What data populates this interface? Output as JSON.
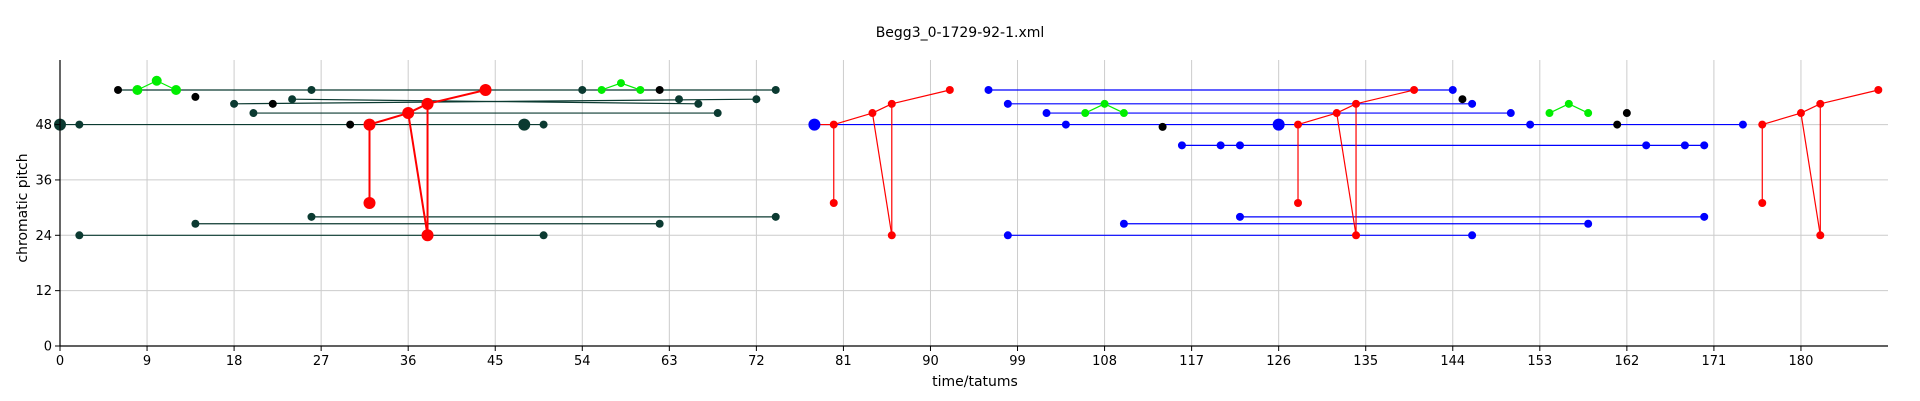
{
  "chart_data": {
    "type": "scatter",
    "title": "Begg3_0-1729-92-1.xml",
    "xlabel": "time/tatums",
    "ylabel": "chromatic pitch",
    "xlim": [
      0,
      189
    ],
    "ylim": [
      0,
      62
    ],
    "xticks": [
      0,
      9,
      18,
      27,
      36,
      45,
      54,
      63,
      72,
      81,
      90,
      99,
      108,
      117,
      126,
      135,
      144,
      153,
      162,
      171,
      180
    ],
    "yticks": [
      0,
      12,
      24,
      36,
      48
    ],
    "grid": true,
    "colors": {
      "darkgreen": "#0b3a31",
      "red": "#ff0000",
      "blue": "#0000ff",
      "green": "#00ee00",
      "black": "#000000"
    },
    "series": [
      {
        "color": "darkgreen",
        "edges": [
          [
            [
              6,
              55.5
            ],
            [
              74,
              55.5
            ]
          ],
          [
            [
              18,
              52.5
            ],
            [
              72,
              53.5
            ]
          ],
          [
            [
              24,
              53.5
            ],
            [
              66,
              52.5
            ]
          ],
          [
            [
              20,
              50.5
            ],
            [
              68,
              50.5
            ]
          ],
          [
            [
              0,
              48
            ],
            [
              50,
              48
            ]
          ],
          [
            [
              26,
              28
            ],
            [
              74,
              28
            ]
          ],
          [
            [
              14,
              26.5
            ],
            [
              62,
              26.5
            ]
          ],
          [
            [
              2,
              24
            ],
            [
              50,
              24
            ]
          ]
        ]
      },
      {
        "color": "red",
        "edges": [
          [
            [
              32,
              48
            ],
            [
              36,
              50.5
            ]
          ],
          [
            [
              36,
              50.5
            ],
            [
              38,
              52.5
            ]
          ],
          [
            [
              38,
              52.5
            ],
            [
              44,
              55.5
            ]
          ],
          [
            [
              32,
              48
            ],
            [
              32,
              31
            ]
          ],
          [
            [
              38,
              52.5
            ],
            [
              38,
              24
            ]
          ],
          [
            [
              36,
              50.5
            ],
            [
              38,
              24
            ]
          ]
        ]
      },
      {
        "color": "green",
        "edges": [
          [
            [
              8,
              55.5
            ],
            [
              10,
              57.5
            ]
          ],
          [
            [
              10,
              57.5
            ],
            [
              12,
              55.5
            ]
          ],
          [
            [
              56,
              55.5
            ],
            [
              58,
              57
            ]
          ],
          [
            [
              58,
              57
            ],
            [
              60,
              55.5
            ]
          ]
        ]
      },
      {
        "color": "blue",
        "edges": [
          [
            [
              96,
              55.5
            ],
            [
              144,
              55.5
            ]
          ],
          [
            [
              98,
              52.5
            ],
            [
              146,
              52.5
            ]
          ],
          [
            [
              102,
              50.5
            ],
            [
              150,
              50.5
            ]
          ],
          [
            [
              78,
              48
            ],
            [
              174,
              48
            ]
          ],
          [
            [
              116,
              43.5
            ],
            [
              170,
              43.5
            ]
          ],
          [
            [
              122,
              28
            ],
            [
              170,
              28
            ]
          ],
          [
            [
              110,
              26.5
            ],
            [
              158,
              26.5
            ]
          ],
          [
            [
              98,
              24
            ],
            [
              146,
              24
            ]
          ]
        ]
      },
      {
        "color": "red",
        "edges": [
          [
            [
              78,
              48
            ],
            [
              80,
              48
            ]
          ],
          [
            [
              80,
              48
            ],
            [
              84,
              50.5
            ]
          ],
          [
            [
              84,
              50.5
            ],
            [
              86,
              52.5
            ]
          ],
          [
            [
              86,
              52.5
            ],
            [
              92,
              55.5
            ]
          ],
          [
            [
              80,
              48
            ],
            [
              80,
              31
            ]
          ],
          [
            [
              84,
              50.5
            ],
            [
              86,
              24
            ]
          ],
          [
            [
              86,
              52.5
            ],
            [
              86,
              24
            ]
          ],
          [
            [
              128,
              48
            ],
            [
              132,
              50.5
            ]
          ],
          [
            [
              132,
              50.5
            ],
            [
              134,
              52.5
            ]
          ],
          [
            [
              134,
              52.5
            ],
            [
              140,
              55.5
            ]
          ],
          [
            [
              128,
              48
            ],
            [
              128,
              31
            ]
          ],
          [
            [
              132,
              50.5
            ],
            [
              134,
              24
            ]
          ],
          [
            [
              134,
              52.5
            ],
            [
              134,
              24
            ]
          ],
          [
            [
              176,
              48
            ],
            [
              180,
              50.5
            ]
          ],
          [
            [
              180,
              50.5
            ],
            [
              182,
              52.5
            ]
          ],
          [
            [
              182,
              52.5
            ],
            [
              188,
              55.5
            ]
          ],
          [
            [
              176,
              48
            ],
            [
              176,
              31
            ]
          ],
          [
            [
              180,
              50.5
            ],
            [
              182,
              24
            ]
          ],
          [
            [
              182,
              52.5
            ],
            [
              182,
              24
            ]
          ]
        ]
      },
      {
        "color": "green",
        "edges": [
          [
            [
              106,
              50.5
            ],
            [
              108,
              52.5
            ]
          ],
          [
            [
              108,
              52.5
            ],
            [
              110,
              50.5
            ]
          ],
          [
            [
              154,
              50.5
            ],
            [
              156,
              52.5
            ]
          ],
          [
            [
              156,
              52.5
            ],
            [
              158,
              50.5
            ]
          ]
        ]
      }
    ],
    "points": [
      [
        0,
        48,
        "darkgreen",
        6
      ],
      [
        2,
        48,
        "darkgreen",
        4
      ],
      [
        2,
        24,
        "darkgreen",
        4
      ],
      [
        6,
        55.5,
        "black",
        4
      ],
      [
        8,
        55.5,
        "green",
        5
      ],
      [
        10,
        57.5,
        "green",
        5
      ],
      [
        12,
        55.5,
        "green",
        5
      ],
      [
        14,
        54,
        "black",
        4
      ],
      [
        14,
        26.5,
        "darkgreen",
        4
      ],
      [
        18,
        52.5,
        "darkgreen",
        4
      ],
      [
        20,
        50.5,
        "darkgreen",
        4
      ],
      [
        22,
        52.5,
        "black",
        4
      ],
      [
        24,
        53.5,
        "darkgreen",
        4
      ],
      [
        26,
        55.5,
        "darkgreen",
        4
      ],
      [
        26,
        28,
        "darkgreen",
        4
      ],
      [
        30,
        48,
        "black",
        4
      ],
      [
        32,
        48,
        "red",
        6
      ],
      [
        32,
        31,
        "red",
        6
      ],
      [
        36,
        50.5,
        "red",
        6
      ],
      [
        38,
        52.5,
        "red",
        6
      ],
      [
        38,
        24,
        "red",
        6
      ],
      [
        44,
        55.5,
        "red",
        6
      ],
      [
        48,
        48,
        "darkgreen",
        6
      ],
      [
        50,
        48,
        "darkgreen",
        4
      ],
      [
        50,
        24,
        "darkgreen",
        4
      ],
      [
        54,
        55.5,
        "darkgreen",
        4
      ],
      [
        56,
        55.5,
        "green",
        4
      ],
      [
        58,
        57,
        "green",
        4
      ],
      [
        60,
        55.5,
        "green",
        4
      ],
      [
        62,
        55.5,
        "black",
        4
      ],
      [
        62,
        26.5,
        "darkgreen",
        4
      ],
      [
        64,
        53.5,
        "darkgreen",
        4
      ],
      [
        66,
        52.5,
        "darkgreen",
        4
      ],
      [
        68,
        50.5,
        "darkgreen",
        4
      ],
      [
        72,
        53.5,
        "darkgreen",
        4
      ],
      [
        74,
        55.5,
        "darkgreen",
        4
      ],
      [
        74,
        28,
        "darkgreen",
        4
      ],
      [
        78,
        48,
        "blue",
        6
      ],
      [
        80,
        48,
        "red",
        4
      ],
      [
        80,
        31,
        "red",
        4
      ],
      [
        84,
        50.5,
        "red",
        4
      ],
      [
        86,
        52.5,
        "red",
        4
      ],
      [
        86,
        24,
        "red",
        4
      ],
      [
        92,
        55.5,
        "red",
        4
      ],
      [
        96,
        55.5,
        "blue",
        4
      ],
      [
        98,
        52.5,
        "blue",
        4
      ],
      [
        98,
        24,
        "blue",
        4
      ],
      [
        102,
        50.5,
        "blue",
        4
      ],
      [
        104,
        48,
        "blue",
        4
      ],
      [
        106,
        50.5,
        "green",
        4
      ],
      [
        108,
        52.5,
        "green",
        4
      ],
      [
        110,
        50.5,
        "green",
        4
      ],
      [
        110,
        26.5,
        "blue",
        4
      ],
      [
        114,
        47.5,
        "black",
        4
      ],
      [
        116,
        43.5,
        "blue",
        4
      ],
      [
        120,
        43.5,
        "blue",
        4
      ],
      [
        122,
        43.5,
        "blue",
        4
      ],
      [
        122,
        28,
        "blue",
        4
      ],
      [
        126,
        48,
        "blue",
        6
      ],
      [
        128,
        48,
        "red",
        4
      ],
      [
        128,
        31,
        "red",
        4
      ],
      [
        132,
        50.5,
        "red",
        4
      ],
      [
        134,
        52.5,
        "red",
        4
      ],
      [
        134,
        24,
        "red",
        4
      ],
      [
        140,
        55.5,
        "red",
        4
      ],
      [
        144,
        55.5,
        "blue",
        4
      ],
      [
        145,
        53.5,
        "black",
        4
      ],
      [
        146,
        52.5,
        "blue",
        4
      ],
      [
        146,
        24,
        "blue",
        4
      ],
      [
        150,
        50.5,
        "blue",
        4
      ],
      [
        152,
        48,
        "blue",
        4
      ],
      [
        154,
        50.5,
        "green",
        4
      ],
      [
        156,
        52.5,
        "green",
        4
      ],
      [
        158,
        50.5,
        "green",
        4
      ],
      [
        158,
        26.5,
        "blue",
        4
      ],
      [
        161,
        48,
        "black",
        4
      ],
      [
        162,
        50.5,
        "black",
        4
      ],
      [
        164,
        43.5,
        "blue",
        4
      ],
      [
        168,
        43.5,
        "blue",
        4
      ],
      [
        170,
        43.5,
        "blue",
        4
      ],
      [
        170,
        28,
        "blue",
        4
      ],
      [
        174,
        48,
        "blue",
        4
      ],
      [
        176,
        48,
        "red",
        4
      ],
      [
        176,
        31,
        "red",
        4
      ],
      [
        180,
        50.5,
        "red",
        4
      ],
      [
        182,
        52.5,
        "red",
        4
      ],
      [
        182,
        24,
        "red",
        4
      ],
      [
        188,
        55.5,
        "red",
        4
      ]
    ]
  }
}
